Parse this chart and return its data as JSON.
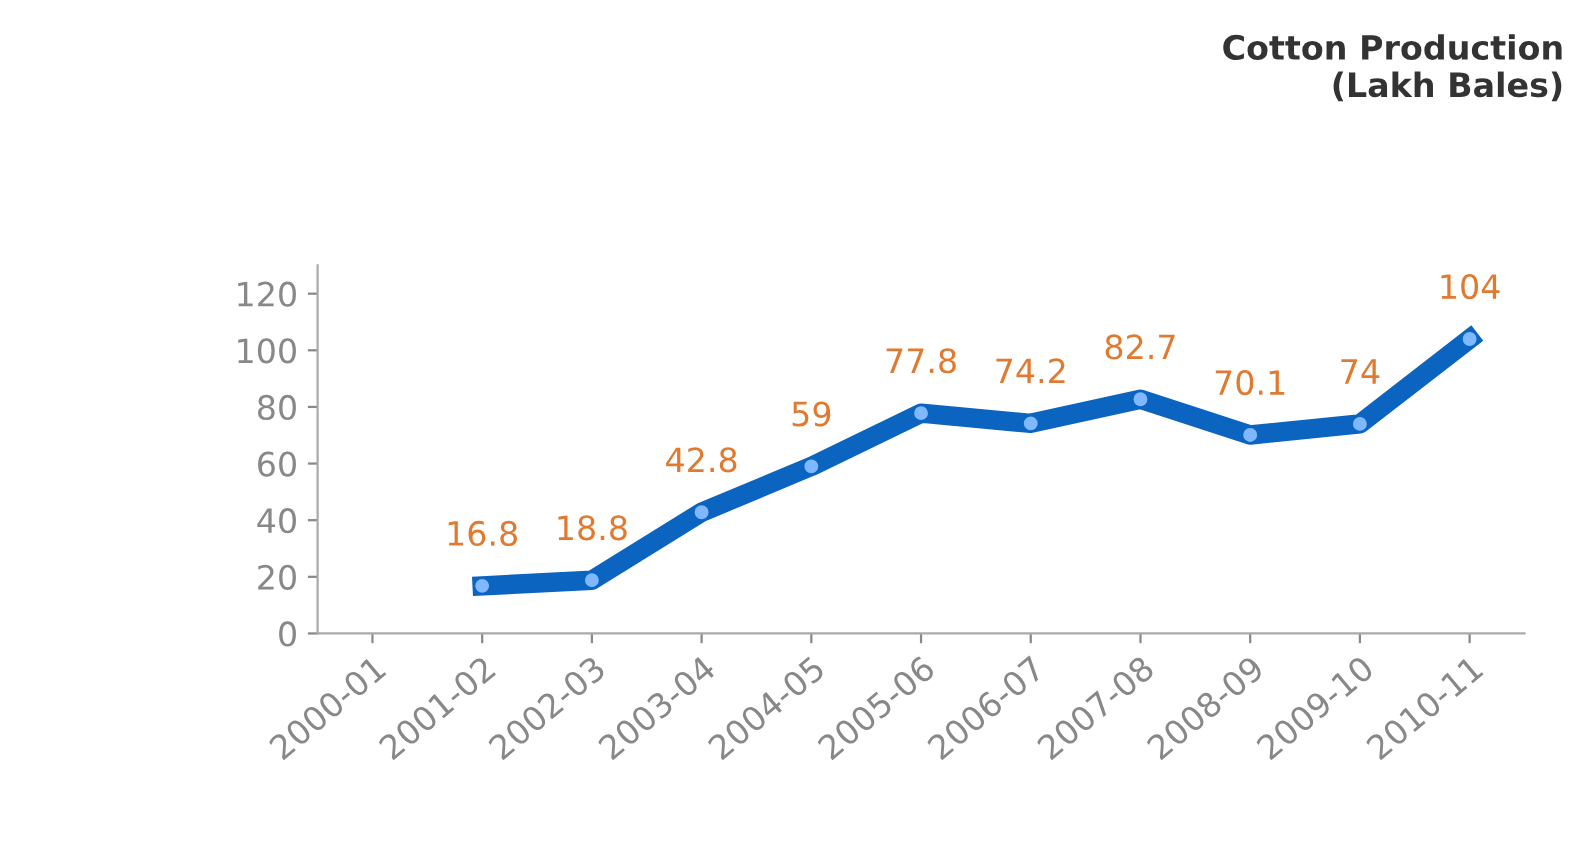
{
  "chart_data": {
    "type": "line",
    "title": "Cotton Production\n(Lakh Bales)",
    "categories": [
      "2000-01",
      "2001-02",
      "2002-03",
      "2003-04",
      "2004-05",
      "2005-06",
      "2006-07",
      "2007-08",
      "2008-09",
      "2009-10",
      "2010-11"
    ],
    "series": [
      {
        "color": "#0a64c0",
        "values": [
          null,
          16.8,
          18.8,
          42.8,
          59,
          77.8,
          74.2,
          82.7,
          70.1,
          74,
          104
        ]
      }
    ],
    "ylim": [
      0,
      130
    ],
    "yticks": [
      0,
      20,
      40,
      60,
      80,
      100,
      120
    ],
    "grid": false,
    "legend": false,
    "marker": "circle",
    "line_style": "solid",
    "data_labels": true
  }
}
